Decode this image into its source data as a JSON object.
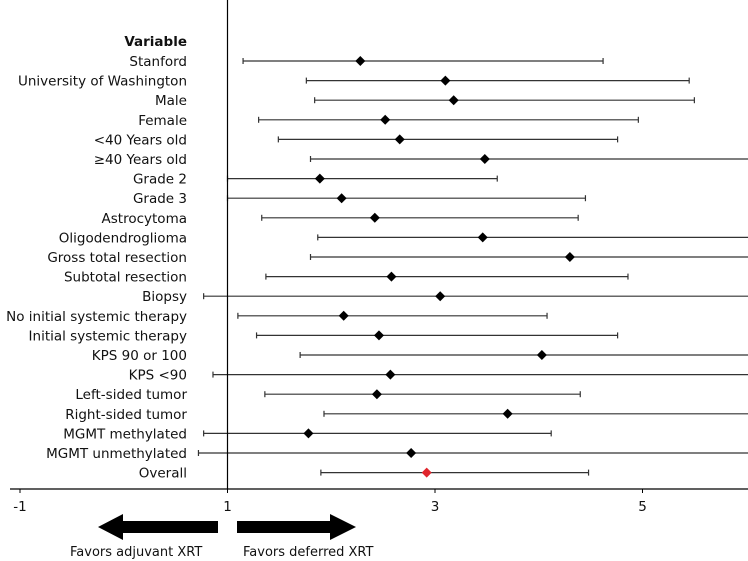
{
  "chart_data": {
    "type": "forest",
    "header": "Variable",
    "xlim": [
      -1,
      6.05
    ],
    "xticks": [
      -1,
      1,
      3,
      5
    ],
    "reference_line": 1,
    "rows": [
      {
        "label": "Stanford",
        "estimate": 2.28,
        "ci_low": 1.15,
        "ci_high": 4.62
      },
      {
        "label": "University of Washington",
        "estimate": 3.1,
        "ci_low": 1.76,
        "ci_high": 5.45
      },
      {
        "label": "Male",
        "estimate": 3.18,
        "ci_low": 1.84,
        "ci_high": 5.5
      },
      {
        "label": "Female",
        "estimate": 2.52,
        "ci_low": 1.3,
        "ci_high": 4.96
      },
      {
        "label": "<40 Years old",
        "estimate": 2.66,
        "ci_low": 1.49,
        "ci_high": 4.76
      },
      {
        "label": "≥40 Years old",
        "estimate": 3.48,
        "ci_low": 1.8,
        "ci_high": 6.05
      },
      {
        "label": "Grade 2",
        "estimate": 1.89,
        "ci_low": 1.0,
        "ci_high": 3.6
      },
      {
        "label": "Grade 3",
        "estimate": 2.1,
        "ci_low": 1.0,
        "ci_high": 4.45
      },
      {
        "label": "Astrocytoma",
        "estimate": 2.42,
        "ci_low": 1.33,
        "ci_high": 4.38
      },
      {
        "label": "Oligodendroglioma",
        "estimate": 3.46,
        "ci_low": 1.87,
        "ci_high": 6.05
      },
      {
        "label": "Gross total resection",
        "estimate": 4.3,
        "ci_low": 1.8,
        "ci_high": 6.05
      },
      {
        "label": "Subtotal resection",
        "estimate": 2.58,
        "ci_low": 1.37,
        "ci_high": 4.86
      },
      {
        "label": "Biopsy",
        "estimate": 3.05,
        "ci_low": 0.77,
        "ci_high": 6.05
      },
      {
        "label": "No initial systemic therapy",
        "estimate": 2.12,
        "ci_low": 1.1,
        "ci_high": 4.08
      },
      {
        "label": "Initial systemic therapy",
        "estimate": 2.46,
        "ci_low": 1.28,
        "ci_high": 4.76
      },
      {
        "label": "KPS 90 or 100",
        "estimate": 4.03,
        "ci_low": 1.7,
        "ci_high": 6.05
      },
      {
        "label": "KPS <90",
        "estimate": 2.57,
        "ci_low": 0.86,
        "ci_high": 6.05
      },
      {
        "label": "Left-sided tumor",
        "estimate": 2.44,
        "ci_low": 1.36,
        "ci_high": 4.4
      },
      {
        "label": "Right-sided tumor",
        "estimate": 3.7,
        "ci_low": 1.93,
        "ci_high": 6.05
      },
      {
        "label": "MGMT methylated",
        "estimate": 1.78,
        "ci_low": 0.77,
        "ci_high": 4.12
      },
      {
        "label": "MGMT unmethylated",
        "estimate": 2.77,
        "ci_low": 0.72,
        "ci_high": 6.05
      },
      {
        "label": "Overall",
        "estimate": 2.92,
        "ci_low": 1.9,
        "ci_high": 4.48
      }
    ],
    "favors_left": "Favors adjuvant XRT",
    "favors_right": "Favors deferred XRT",
    "colors": {
      "marker": "#000000",
      "overall_marker": "#e0252c",
      "ci_line": "#333333",
      "axis": "#000000"
    }
  }
}
